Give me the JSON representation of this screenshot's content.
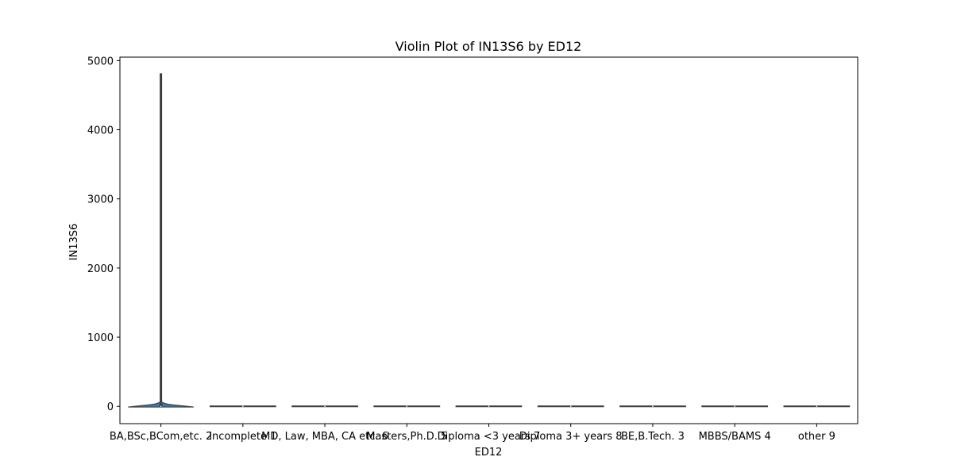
{
  "chart_data": {
    "type": "violin",
    "title": "Violin Plot of IN13S6 by ED12",
    "xlabel": "ED12",
    "ylabel": "IN13S6",
    "categories": [
      "BA,BSc,BCom,etc. 2",
      "Incomplete 1",
      "MD, Law, MBA, CA etc. 6",
      "Masters,Ph.D. 5",
      "Diploma <3 years 7",
      "Diploma 3+ years 8",
      "BE,B.Tech. 3",
      "MBBS/BAMS 4",
      "other 9"
    ],
    "y_ticks": [
      0,
      1000,
      2000,
      3000,
      4000,
      5000
    ],
    "ylim": [
      -250,
      5050
    ],
    "violins": [
      {
        "category": "BA,BSc,BCom,etc. 2",
        "min": -10,
        "max": 4810,
        "median": 0,
        "bulk_top": 40
      },
      {
        "category": "Incomplete 1",
        "min": 0,
        "max": 0,
        "median": 0,
        "bulk_top": 0
      },
      {
        "category": "MD, Law, MBA, CA etc. 6",
        "min": 0,
        "max": 0,
        "median": 0,
        "bulk_top": 0
      },
      {
        "category": "Masters,Ph.D. 5",
        "min": 0,
        "max": 0,
        "median": 0,
        "bulk_top": 0
      },
      {
        "category": "Diploma <3 years 7",
        "min": 0,
        "max": 0,
        "median": 0,
        "bulk_top": 0
      },
      {
        "category": "Diploma 3+ years 8",
        "min": 0,
        "max": 0,
        "median": 0,
        "bulk_top": 0
      },
      {
        "category": "BE,B.Tech. 3",
        "min": 0,
        "max": 0,
        "median": 0,
        "bulk_top": 0
      },
      {
        "category": "MBBS/BAMS 4",
        "min": 0,
        "max": 0,
        "median": 0,
        "bulk_top": 0
      },
      {
        "category": "other 9",
        "min": 0,
        "max": 0,
        "median": 0,
        "bulk_top": 0
      }
    ],
    "grid": false,
    "colors": {
      "violin_fill": "#3a7eb8",
      "violin_edge": "#3d3d3d",
      "axis": "#000000"
    }
  }
}
